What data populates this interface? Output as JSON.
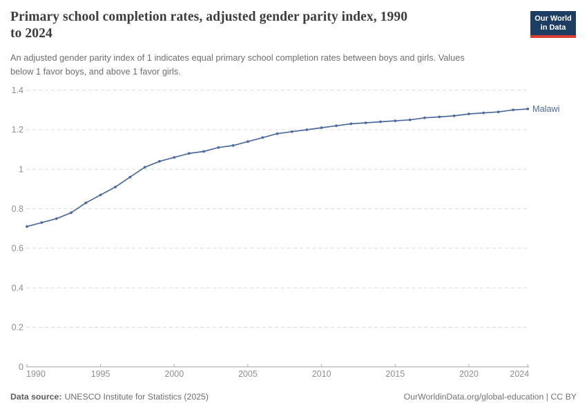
{
  "header": {
    "title": {
      "full": "Primary school completion rates, adjusted gender parity index, 1990 to 2024",
      "line1": "Primary school completion rates, adjusted gender parity index, 1990",
      "line2": "to 2024"
    },
    "subtitle": {
      "full": "An adjusted gender parity index of 1 indicates equal primary school completion rates between boys and girls. Values below 1 favor boys, and above 1 favor girls.",
      "line1": "An adjusted gender parity index of 1 indicates equal primary school completion rates between boys and girls. Values",
      "line2": "below 1 favor boys, and above 1 favor girls."
    },
    "logo": {
      "line1": "Our World",
      "line2": "in Data",
      "bg_color": "#1d3d63",
      "bar_color": "#dc3e36"
    }
  },
  "chart_data": {
    "type": "line",
    "title": "Primary school completion rates, adjusted gender parity index, 1990 to 2024",
    "xlabel": "",
    "ylabel": "",
    "xlim": [
      1990,
      2024
    ],
    "ylim": [
      0,
      1.4
    ],
    "grid": "horizontal-dashed",
    "legend_position": "end-of-line-label",
    "marker": "circle",
    "x": [
      1990,
      1991,
      1992,
      1993,
      1994,
      1995,
      1996,
      1997,
      1998,
      1999,
      2000,
      2001,
      2002,
      2003,
      2004,
      2005,
      2006,
      2007,
      2008,
      2009,
      2010,
      2011,
      2012,
      2013,
      2014,
      2015,
      2016,
      2017,
      2018,
      2019,
      2020,
      2021,
      2022,
      2023,
      2024
    ],
    "series": [
      {
        "name": "Malawi",
        "color": "#4c6a9c",
        "values": [
          0.71,
          0.73,
          0.75,
          0.78,
          0.83,
          0.87,
          0.91,
          0.96,
          1.01,
          1.04,
          1.06,
          1.08,
          1.09,
          1.11,
          1.12,
          1.14,
          1.16,
          1.18,
          1.19,
          1.2,
          1.21,
          1.22,
          1.23,
          1.235,
          1.24,
          1.245,
          1.25,
          1.26,
          1.265,
          1.27,
          1.28,
          1.285,
          1.29,
          1.3,
          1.305
        ]
      }
    ],
    "entity_label": "Malawi",
    "yticks": {
      "values": [
        0,
        0.2,
        0.4,
        0.6,
        0.8,
        1,
        1.2,
        1.4
      ],
      "labels": [
        "0",
        "0.2",
        "0.4",
        "0.6",
        "0.8",
        "1",
        "1.2",
        "1.4"
      ]
    },
    "xticks": {
      "values": [
        1990,
        1995,
        2000,
        2005,
        2010,
        2015,
        2020,
        2024
      ],
      "labels": [
        "1990",
        "1995",
        "2000",
        "2005",
        "2010",
        "2015",
        "2020",
        "2024"
      ]
    }
  },
  "footer": {
    "data_source_label": "Data source:",
    "data_source_value": "UNESCO Institute for Statistics (2025)",
    "link": "OurWorldinData.org/global-education",
    "separator": " | ",
    "license": "CC BY"
  },
  "colors": {
    "line": "#4c6a9c",
    "axis_label": "#8f8f8f",
    "gridline": "#dcdcdc",
    "axis": "#a6a6a6",
    "title": "#3d3d3d",
    "subtitle": "#6e6e6e",
    "footer": "#6d6d6d"
  }
}
